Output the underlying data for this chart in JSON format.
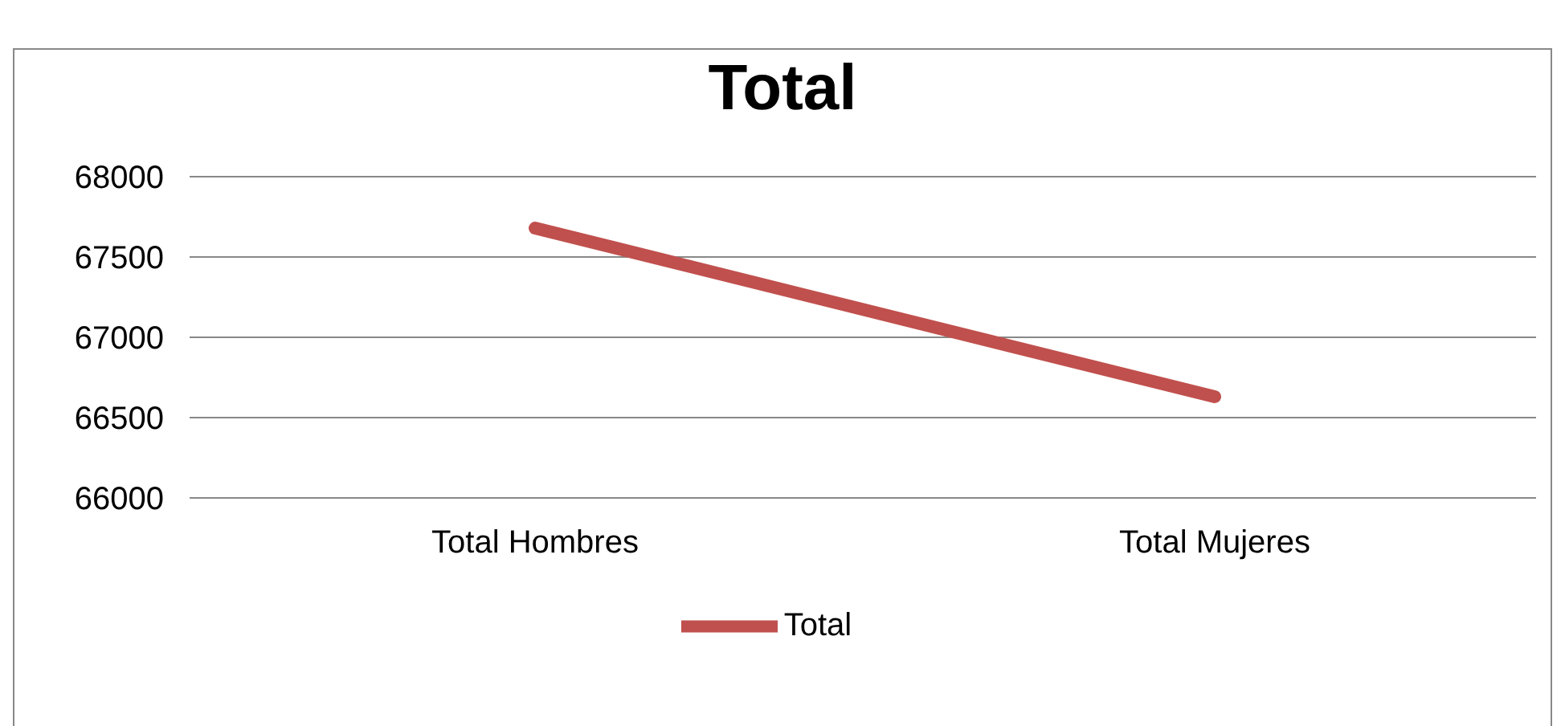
{
  "chart_data": {
    "type": "line",
    "title": "Total",
    "categories": [
      "Total Hombres",
      "Total Mujeres"
    ],
    "series": [
      {
        "name": "Total",
        "color": "#c0504d",
        "values": [
          67680,
          66630
        ]
      }
    ],
    "ylim": [
      66000,
      68000
    ],
    "yticks": [
      66000,
      66500,
      67000,
      67500,
      68000
    ],
    "grid": "y",
    "legend": "bottom",
    "marker": "none",
    "line_style": "solid"
  }
}
